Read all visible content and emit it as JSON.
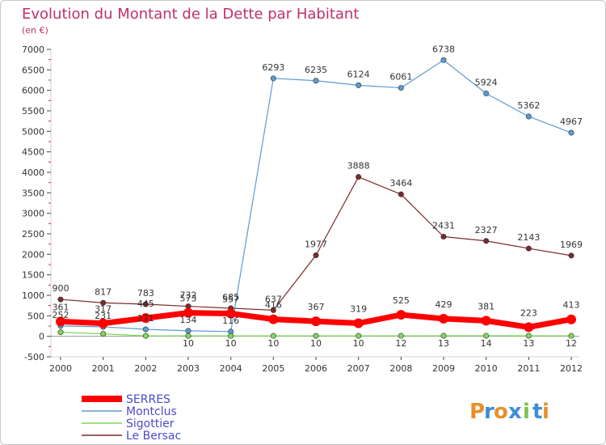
{
  "chart_data": {
    "type": "line",
    "title": "Evolution du Montant de la Dette par Habitant",
    "subtitle": "(en €)",
    "x": [
      "2000",
      "2001",
      "2002",
      "2003",
      "2004",
      "2005",
      "2006",
      "2007",
      "2008",
      "2009",
      "2010",
      "2011",
      "2012"
    ],
    "ylim": [
      -500,
      7000
    ],
    "yticks": [
      -500,
      0,
      500,
      1000,
      1500,
      2000,
      2500,
      3000,
      3500,
      4000,
      4500,
      5000,
      5500,
      6000,
      6500,
      7000
    ],
    "grid": false,
    "legend_position": "bottom-left",
    "series": [
      {
        "name": "SERRES",
        "color": "#ff0000",
        "values": [
          361,
          317,
          445,
          573,
          557,
          416,
          367,
          319,
          525,
          429,
          381,
          223,
          413
        ],
        "labels": [
          "361",
          "317",
          "445",
          "573",
          "557",
          "416",
          "367",
          "319",
          "525",
          "429",
          "381",
          "223",
          "413"
        ]
      },
      {
        "name": "Montclus",
        "color": "#5b9bd5",
        "values": [
          252,
          231,
          171,
          134,
          116,
          6293,
          6235,
          6124,
          6061,
          6738,
          5924,
          5362,
          4967
        ],
        "labels": [
          "252",
          "231",
          "171",
          "134",
          "116",
          "6293",
          "6235",
          "6124",
          "6061",
          "6738",
          "5924",
          "5362",
          "4967"
        ]
      },
      {
        "name": "Sigottier",
        "color": "#7ed957",
        "values": [
          100,
          60,
          10,
          10,
          10,
          10,
          10,
          10,
          12,
          13,
          14,
          13,
          12
        ],
        "labels": [
          "",
          "",
          "",
          "10",
          "10",
          "10",
          "10",
          "10",
          "12",
          "13",
          "14",
          "13",
          "12"
        ]
      },
      {
        "name": "Le Bersac",
        "color": "#7b2a2a",
        "values": [
          900,
          817,
          783,
          732,
          685,
          637,
          1977,
          3888,
          3464,
          2431,
          2327,
          2143,
          1969
        ],
        "labels": [
          "900",
          "817",
          "783",
          "732",
          "685",
          "637",
          "1977",
          "3888",
          "3464",
          "2431",
          "2327",
          "2143",
          "1969"
        ]
      }
    ]
  },
  "brand": {
    "letters": [
      "P",
      "r",
      "o",
      "x",
      "i",
      "t",
      "i"
    ],
    "colors": [
      "#e88f2a",
      "#3b8ed6",
      "#e88f2a",
      "#3b8ed6",
      "#7ec34a",
      "#3b8ed6",
      "#e88f2a"
    ]
  }
}
